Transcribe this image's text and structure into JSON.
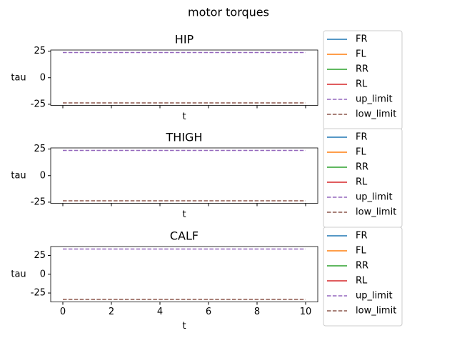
{
  "title": "motor torques",
  "chart_data": [
    {
      "type": "line",
      "title": "HIP",
      "xlabel": "t",
      "ylabel": "tau",
      "x": [
        0,
        10
      ],
      "xlim": [
        -0.5,
        10.5
      ],
      "xticks": [
        0,
        2,
        4,
        6,
        8,
        10
      ],
      "show_xticklabels": false,
      "ylim": [
        -26.07,
        26.07
      ],
      "yticks": [
        -25,
        0,
        25
      ],
      "legend": "outside right",
      "series": [
        {
          "name": "FR",
          "color": "#1f77b4",
          "linestyle": "solid",
          "values": [
            null,
            null
          ]
        },
        {
          "name": "FL",
          "color": "#ff7f0e",
          "linestyle": "solid",
          "values": [
            null,
            null
          ]
        },
        {
          "name": "RR",
          "color": "#2ca02c",
          "linestyle": "solid",
          "values": [
            null,
            null
          ]
        },
        {
          "name": "RL",
          "color": "#d62728",
          "linestyle": "solid",
          "values": [
            null,
            null
          ]
        },
        {
          "name": "up_limit",
          "color": "#9467bd",
          "linestyle": "dashed",
          "values": [
            23.7,
            23.7
          ]
        },
        {
          "name": "low_limit",
          "color": "#8c564b",
          "linestyle": "dashed",
          "values": [
            -23.7,
            -23.7
          ]
        }
      ]
    },
    {
      "type": "line",
      "title": "THIGH",
      "xlabel": "t",
      "ylabel": "tau",
      "x": [
        0,
        10
      ],
      "xlim": [
        -0.5,
        10.5
      ],
      "xticks": [
        0,
        2,
        4,
        6,
        8,
        10
      ],
      "show_xticklabels": false,
      "ylim": [
        -26.07,
        26.07
      ],
      "yticks": [
        -25,
        0,
        25
      ],
      "legend": "outside right",
      "series": [
        {
          "name": "FR",
          "color": "#1f77b4",
          "linestyle": "solid",
          "values": [
            null,
            null
          ]
        },
        {
          "name": "FL",
          "color": "#ff7f0e",
          "linestyle": "solid",
          "values": [
            null,
            null
          ]
        },
        {
          "name": "RR",
          "color": "#2ca02c",
          "linestyle": "solid",
          "values": [
            null,
            null
          ]
        },
        {
          "name": "RL",
          "color": "#d62728",
          "linestyle": "solid",
          "values": [
            null,
            null
          ]
        },
        {
          "name": "up_limit",
          "color": "#9467bd",
          "linestyle": "dashed",
          "values": [
            23.7,
            23.7
          ]
        },
        {
          "name": "low_limit",
          "color": "#8c564b",
          "linestyle": "dashed",
          "values": [
            -23.7,
            -23.7
          ]
        }
      ]
    },
    {
      "type": "line",
      "title": "CALF",
      "xlabel": "t",
      "ylabel": "tau",
      "x": [
        0,
        10
      ],
      "xlim": [
        -0.5,
        10.5
      ],
      "xticks": [
        0,
        2,
        4,
        6,
        8,
        10
      ],
      "show_xticklabels": true,
      "ylim": [
        -36.85,
        36.85
      ],
      "yticks": [
        -25,
        0,
        25
      ],
      "legend": "outside right",
      "series": [
        {
          "name": "FR",
          "color": "#1f77b4",
          "linestyle": "solid",
          "values": [
            null,
            null
          ]
        },
        {
          "name": "FL",
          "color": "#ff7f0e",
          "linestyle": "solid",
          "values": [
            null,
            null
          ]
        },
        {
          "name": "RR",
          "color": "#2ca02c",
          "linestyle": "solid",
          "values": [
            null,
            null
          ]
        },
        {
          "name": "RL",
          "color": "#d62728",
          "linestyle": "solid",
          "values": [
            null,
            null
          ]
        },
        {
          "name": "up_limit",
          "color": "#9467bd",
          "linestyle": "dashed",
          "values": [
            33.5,
            33.5
          ]
        },
        {
          "name": "low_limit",
          "color": "#8c564b",
          "linestyle": "dashed",
          "values": [
            -33.5,
            -33.5
          ]
        }
      ]
    }
  ]
}
